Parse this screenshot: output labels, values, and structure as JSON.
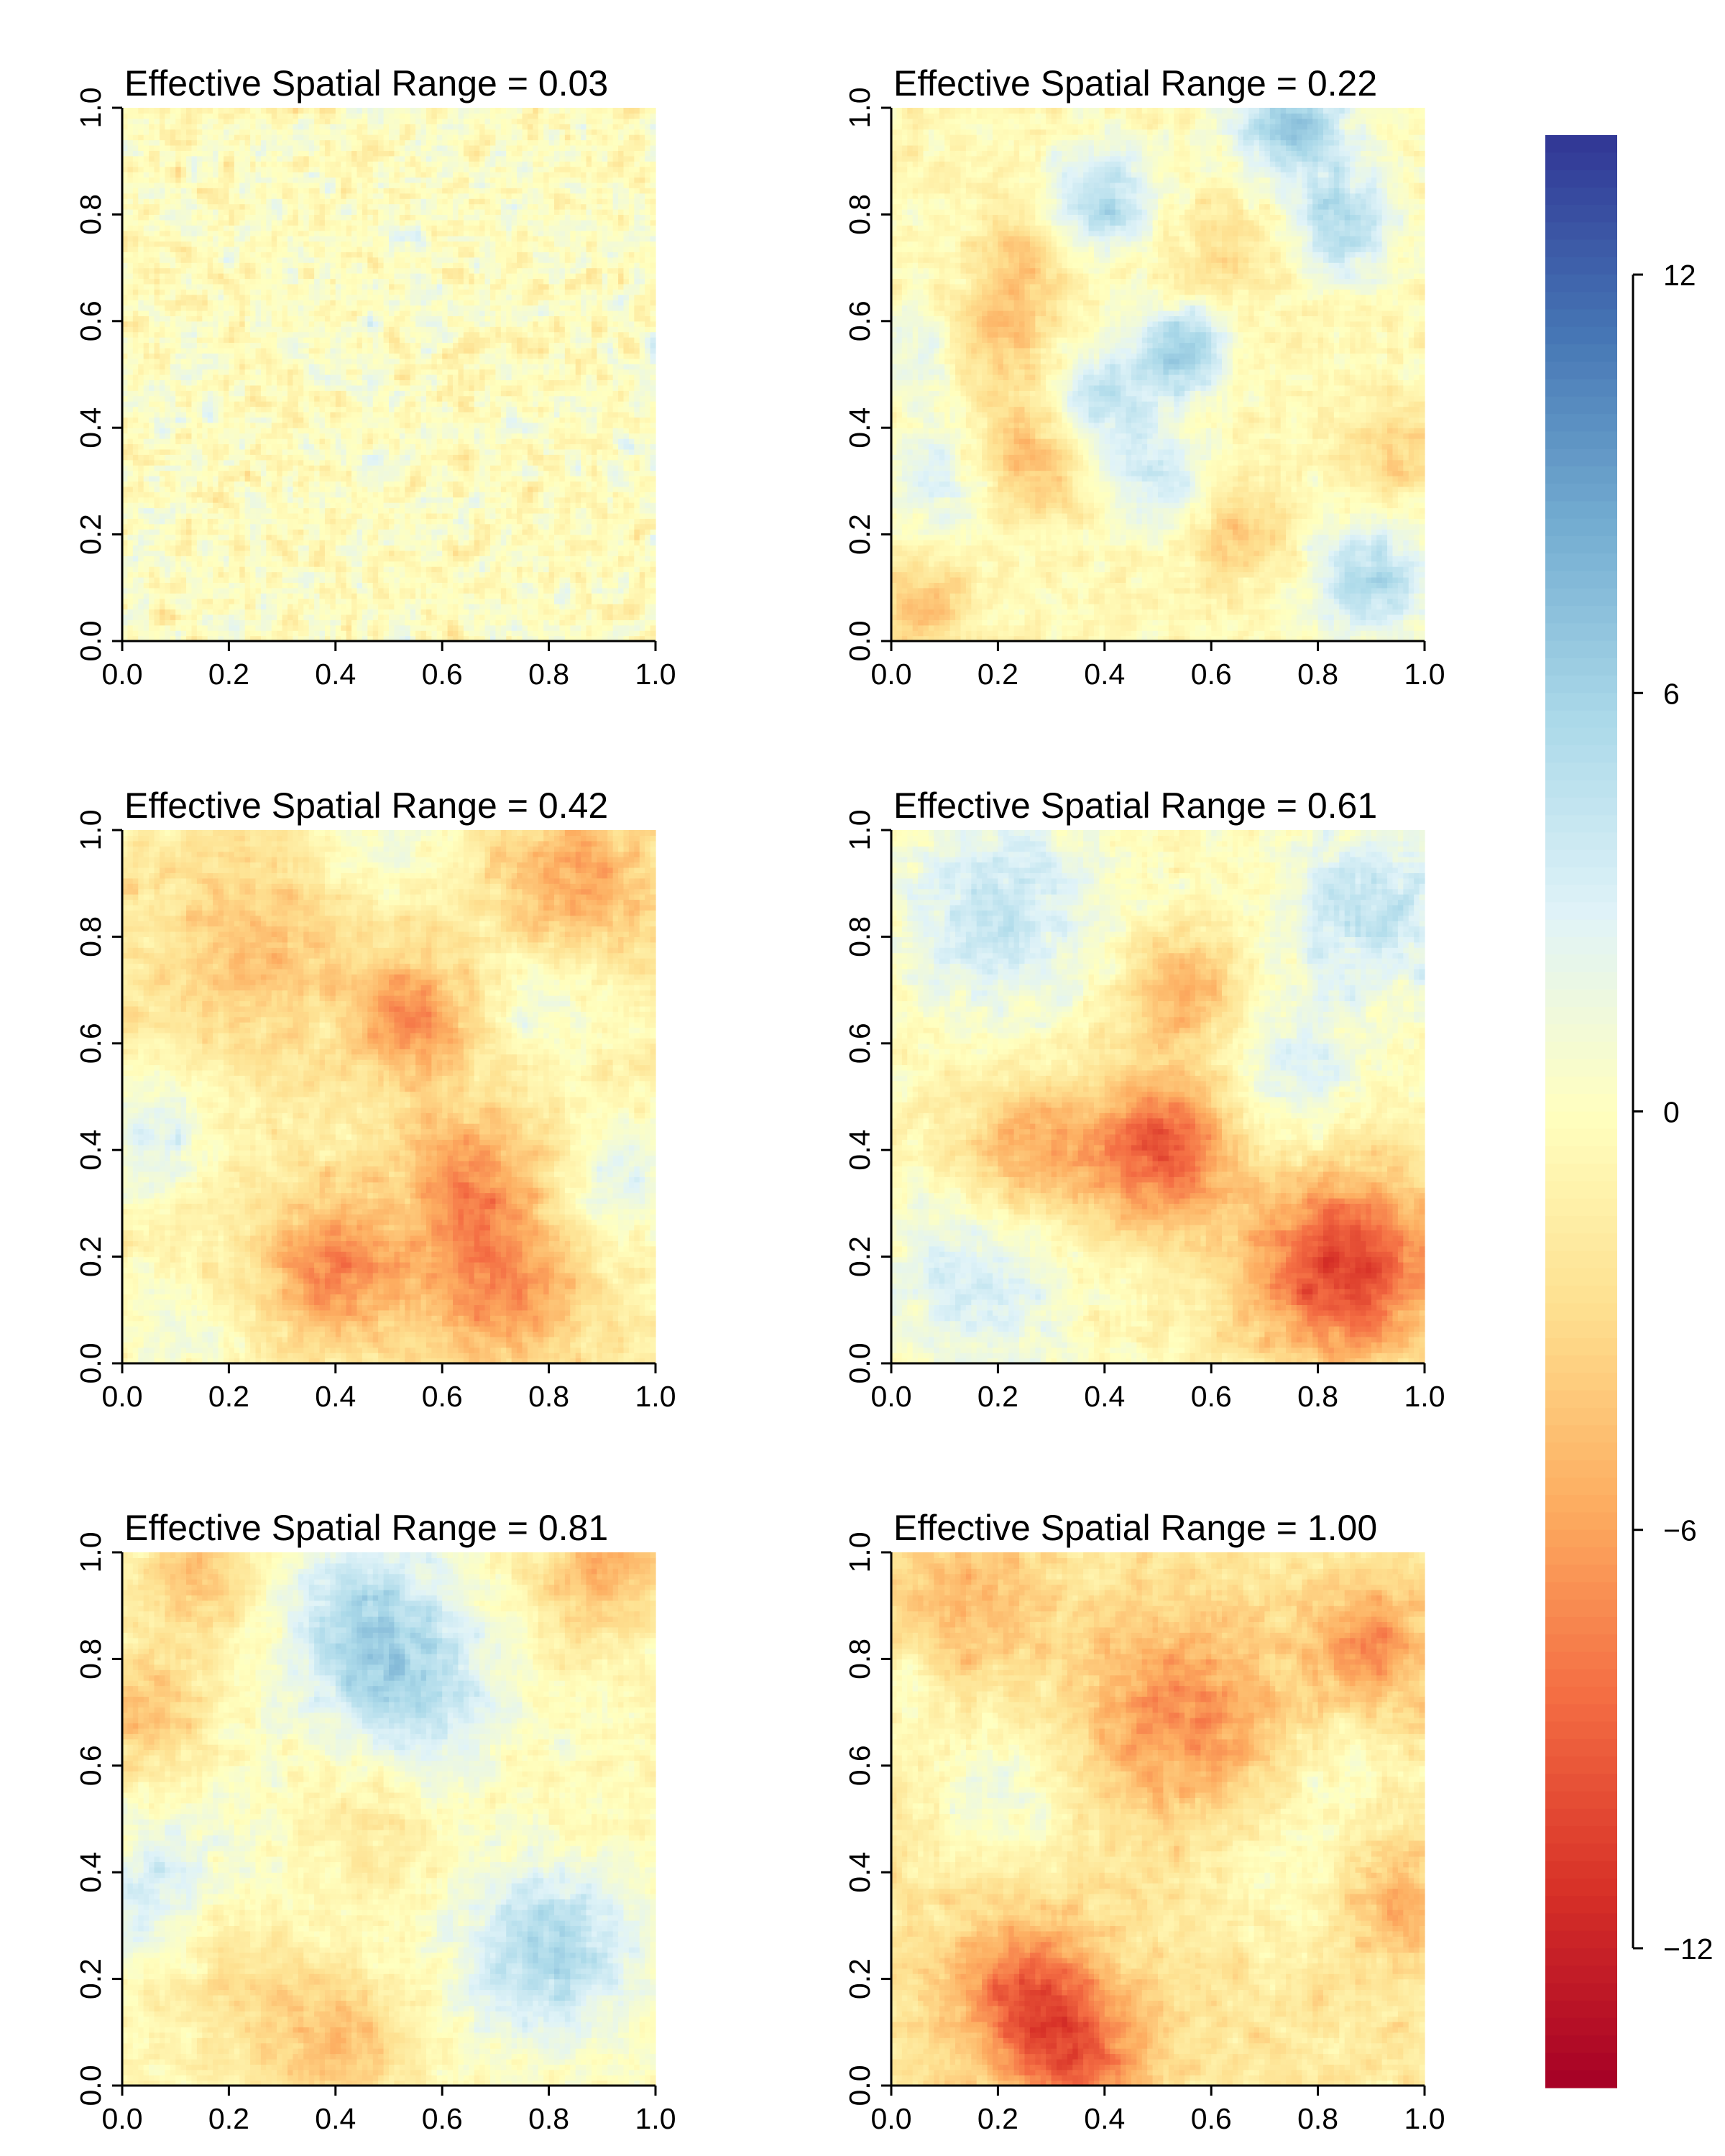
{
  "chart_data": [
    {
      "type": "heatmap",
      "title": "Effective Spatial Range = 0.03",
      "effective_spatial_range": 0.03,
      "x_ticks": [
        "0.0",
        "0.2",
        "0.4",
        "0.6",
        "0.8",
        "1.0"
      ],
      "y_ticks": [
        "0.0",
        "0.2",
        "0.4",
        "0.6",
        "0.8",
        "1.0"
      ],
      "xlim": [
        0,
        1
      ],
      "ylim": [
        0,
        1
      ],
      "bias": 0.0,
      "features": []
    },
    {
      "type": "heatmap",
      "title": "Effective Spatial Range = 0.22",
      "effective_spatial_range": 0.22,
      "x_ticks": [
        "0.0",
        "0.2",
        "0.4",
        "0.6",
        "0.8",
        "1.0"
      ],
      "y_ticks": [
        "0.0",
        "0.2",
        "0.4",
        "0.6",
        "0.8",
        "1.0"
      ],
      "xlim": [
        0,
        1
      ],
      "ylim": [
        0,
        1
      ],
      "bias": -0.5,
      "features": [
        {
          "x": 0.75,
          "y": 0.97,
          "value": 7.0,
          "spread": 0.08
        },
        {
          "x": 0.4,
          "y": 0.83,
          "value": 6.0,
          "spread": 0.07
        },
        {
          "x": 0.85,
          "y": 0.78,
          "value": 6.0,
          "spread": 0.07
        },
        {
          "x": 0.55,
          "y": 0.55,
          "value": 7.0,
          "spread": 0.06
        },
        {
          "x": 0.4,
          "y": 0.45,
          "value": 5.0,
          "spread": 0.07
        },
        {
          "x": 0.1,
          "y": 0.3,
          "value": 3.5,
          "spread": 0.08
        },
        {
          "x": 0.5,
          "y": 0.3,
          "value": 4.0,
          "spread": 0.07
        },
        {
          "x": 0.9,
          "y": 0.12,
          "value": 6.0,
          "spread": 0.08
        },
        {
          "x": 0.05,
          "y": 0.55,
          "value": 3.0,
          "spread": 0.07
        },
        {
          "x": 0.25,
          "y": 0.35,
          "value": -4.5,
          "spread": 0.08
        },
        {
          "x": 0.2,
          "y": 0.58,
          "value": -4.0,
          "spread": 0.07
        },
        {
          "x": 0.25,
          "y": 0.72,
          "value": -3.5,
          "spread": 0.06
        },
        {
          "x": 0.65,
          "y": 0.2,
          "value": -3.5,
          "spread": 0.07
        },
        {
          "x": 0.05,
          "y": 0.05,
          "value": -4.0,
          "spread": 0.07
        },
        {
          "x": 0.95,
          "y": 0.35,
          "value": -3.0,
          "spread": 0.07
        },
        {
          "x": 0.62,
          "y": 0.72,
          "value": -2.5,
          "spread": 0.08
        }
      ]
    },
    {
      "type": "heatmap",
      "title": "Effective Spatial Range = 0.42",
      "effective_spatial_range": 0.42,
      "x_ticks": [
        "0.0",
        "0.2",
        "0.4",
        "0.6",
        "0.8",
        "1.0"
      ],
      "y_ticks": [
        "0.0",
        "0.2",
        "0.4",
        "0.6",
        "0.8",
        "1.0"
      ],
      "xlim": [
        0,
        1
      ],
      "ylim": [
        0,
        1
      ],
      "bias": -1.5,
      "features": [
        {
          "x": 0.55,
          "y": 0.65,
          "value": -6.0,
          "spread": 0.08
        },
        {
          "x": 0.4,
          "y": 0.18,
          "value": -6.0,
          "spread": 0.09
        },
        {
          "x": 0.7,
          "y": 0.15,
          "value": -6.0,
          "spread": 0.1
        },
        {
          "x": 0.65,
          "y": 0.35,
          "value": -5.0,
          "spread": 0.09
        },
        {
          "x": 0.85,
          "y": 0.88,
          "value": -5.0,
          "spread": 0.1
        },
        {
          "x": 0.25,
          "y": 0.78,
          "value": -3.0,
          "spread": 0.12
        },
        {
          "x": 0.05,
          "y": 0.42,
          "value": 4.0,
          "spread": 0.09
        },
        {
          "x": 0.95,
          "y": 0.35,
          "value": 3.5,
          "spread": 0.09
        },
        {
          "x": 0.8,
          "y": 0.7,
          "value": 3.0,
          "spread": 0.1
        },
        {
          "x": 0.1,
          "y": 0.05,
          "value": 3.0,
          "spread": 0.08
        },
        {
          "x": 0.5,
          "y": 0.98,
          "value": 3.0,
          "spread": 0.08
        }
      ]
    },
    {
      "type": "heatmap",
      "title": "Effective Spatial Range = 0.61",
      "effective_spatial_range": 0.61,
      "x_ticks": [
        "0.0",
        "0.2",
        "0.4",
        "0.6",
        "0.8",
        "1.0"
      ],
      "y_ticks": [
        "0.0",
        "0.2",
        "0.4",
        "0.6",
        "0.8",
        "1.0"
      ],
      "xlim": [
        0,
        1
      ],
      "ylim": [
        0,
        1
      ],
      "bias": -0.5,
      "features": [
        {
          "x": 0.5,
          "y": 0.4,
          "value": -9.0,
          "spread": 0.1
        },
        {
          "x": 0.85,
          "y": 0.18,
          "value": -10.0,
          "spread": 0.13
        },
        {
          "x": 0.55,
          "y": 0.7,
          "value": -5.0,
          "spread": 0.08
        },
        {
          "x": 0.25,
          "y": 0.4,
          "value": -5.0,
          "spread": 0.09
        },
        {
          "x": 0.2,
          "y": 0.85,
          "value": 4.5,
          "spread": 0.14
        },
        {
          "x": 0.9,
          "y": 0.85,
          "value": 5.0,
          "spread": 0.12
        },
        {
          "x": 0.15,
          "y": 0.15,
          "value": 4.0,
          "spread": 0.12
        },
        {
          "x": 0.75,
          "y": 0.55,
          "value": 3.0,
          "spread": 0.1
        }
      ]
    },
    {
      "type": "heatmap",
      "title": "Effective Spatial Range = 0.81",
      "effective_spatial_range": 0.81,
      "x_ticks": [
        "0.0",
        "0.2",
        "0.4",
        "0.6",
        "0.8",
        "1.0"
      ],
      "y_ticks": [
        "0.0",
        "0.2",
        "0.4",
        "0.6",
        "0.8",
        "1.0"
      ],
      "xlim": [
        0,
        1
      ],
      "ylim": [
        0,
        1
      ],
      "bias": -0.5,
      "features": [
        {
          "x": 0.45,
          "y": 0.88,
          "value": 5.0,
          "spread": 0.12
        },
        {
          "x": 0.55,
          "y": 0.72,
          "value": 4.5,
          "spread": 0.12
        },
        {
          "x": 0.8,
          "y": 0.25,
          "value": 6.0,
          "spread": 0.12
        },
        {
          "x": 0.05,
          "y": 0.35,
          "value": 4.0,
          "spread": 0.1
        },
        {
          "x": 0.3,
          "y": 0.4,
          "value": 2.0,
          "spread": 0.15
        },
        {
          "x": 0.15,
          "y": 0.95,
          "value": -4.0,
          "spread": 0.08
        },
        {
          "x": 0.9,
          "y": 0.97,
          "value": -5.0,
          "spread": 0.08
        },
        {
          "x": 0.05,
          "y": 0.7,
          "value": -4.0,
          "spread": 0.08
        },
        {
          "x": 0.4,
          "y": 0.08,
          "value": -4.0,
          "spread": 0.1
        },
        {
          "x": 0.2,
          "y": 0.25,
          "value": -3.0,
          "spread": 0.12
        },
        {
          "x": 0.45,
          "y": 0.5,
          "value": -3.0,
          "spread": 0.1
        }
      ]
    },
    {
      "type": "heatmap",
      "title": "Effective Spatial Range = 1.00",
      "effective_spatial_range": 1.0,
      "x_ticks": [
        "0.0",
        "0.2",
        "0.4",
        "0.6",
        "0.8",
        "1.0"
      ],
      "y_ticks": [
        "0.0",
        "0.2",
        "0.4",
        "0.6",
        "0.8",
        "1.0"
      ],
      "xlim": [
        0,
        1
      ],
      "ylim": [
        0,
        1
      ],
      "bias": -2.0,
      "features": [
        {
          "x": 0.25,
          "y": 0.18,
          "value": -6.0,
          "spread": 0.1
        },
        {
          "x": 0.35,
          "y": 0.05,
          "value": -6.0,
          "spread": 0.1
        },
        {
          "x": 0.55,
          "y": 0.7,
          "value": -5.0,
          "spread": 0.13
        },
        {
          "x": 0.9,
          "y": 0.82,
          "value": -5.0,
          "spread": 0.08
        },
        {
          "x": 0.95,
          "y": 0.35,
          "value": -4.0,
          "spread": 0.08
        },
        {
          "x": 0.15,
          "y": 0.9,
          "value": -3.0,
          "spread": 0.1
        },
        {
          "x": 0.2,
          "y": 0.55,
          "value": 3.5,
          "spread": 0.1
        },
        {
          "x": 0.02,
          "y": 0.75,
          "value": 2.5,
          "spread": 0.06
        },
        {
          "x": 0.75,
          "y": 0.4,
          "value": 2.0,
          "spread": 0.12
        },
        {
          "x": 0.85,
          "y": 0.6,
          "value": 2.0,
          "spread": 0.08
        }
      ]
    }
  ],
  "colorbar": {
    "min": -14,
    "max": 14,
    "ticks": [
      {
        "value": 12,
        "label": "12"
      },
      {
        "value": 6,
        "label": "6"
      },
      {
        "value": 0,
        "label": "0"
      },
      {
        "value": -6,
        "label": "−6"
      },
      {
        "value": -12,
        "label": "−12"
      }
    ],
    "palette": [
      "#a50026",
      "#d73027",
      "#f46d43",
      "#fdae61",
      "#fee090",
      "#ffffbf",
      "#e0f3f8",
      "#abd9e9",
      "#74add1",
      "#4575b4",
      "#313695"
    ]
  }
}
